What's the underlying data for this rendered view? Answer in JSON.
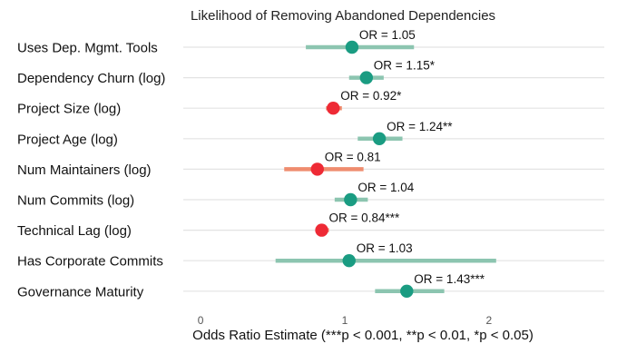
{
  "chart_data": {
    "type": "forest",
    "title": "Likelihood of Removing Abandoned Dependencies",
    "xlabel": "Odds Ratio Estimate (***p < 0.001, **p < 0.01, *p < 0.05)",
    "ylabel": "",
    "xlim": [
      -0.12,
      2.8
    ],
    "xticks": [
      "0",
      "1",
      "2"
    ],
    "grid": true,
    "colors": {
      "positive": "#1a9c82",
      "positive_ci": "#8cc5b0",
      "negative": "#ee2a35",
      "negative_ci": "#ef8c6e"
    },
    "rows": [
      {
        "label": "Uses Dep. Mgmt. Tools",
        "or": 1.05,
        "ci": [
          0.73,
          1.48
        ],
        "annotation": "OR = 1.05",
        "direction": "positive"
      },
      {
        "label": "Dependency Churn (log)",
        "or": 1.15,
        "ci": [
          1.03,
          1.27
        ],
        "annotation": "OR = 1.15*",
        "direction": "positive"
      },
      {
        "label": "Project Size (log)",
        "or": 0.92,
        "ci": [
          0.87,
          0.98
        ],
        "annotation": "OR = 0.92*",
        "direction": "negative"
      },
      {
        "label": "Project Age (log)",
        "or": 1.24,
        "ci": [
          1.09,
          1.4
        ],
        "annotation": "OR = 1.24**",
        "direction": "positive"
      },
      {
        "label": "Num Maintainers (log)",
        "or": 0.81,
        "ci": [
          0.58,
          1.13
        ],
        "annotation": "OR = 0.81",
        "direction": "negative"
      },
      {
        "label": "Num Commits (log)",
        "or": 1.04,
        "ci": [
          0.93,
          1.16
        ],
        "annotation": "OR = 1.04",
        "direction": "positive"
      },
      {
        "label": "Technical Lag (log)",
        "or": 0.84,
        "ci": [
          0.8,
          0.89
        ],
        "annotation": "OR = 0.84***",
        "direction": "negative"
      },
      {
        "label": "Has Corporate Commits",
        "or": 1.03,
        "ci": [
          0.52,
          2.05
        ],
        "annotation": "OR = 1.03",
        "direction": "positive"
      },
      {
        "label": "Governance Maturity",
        "or": 1.43,
        "ci": [
          1.21,
          1.69
        ],
        "annotation": "OR = 1.43***",
        "direction": "positive"
      }
    ]
  }
}
